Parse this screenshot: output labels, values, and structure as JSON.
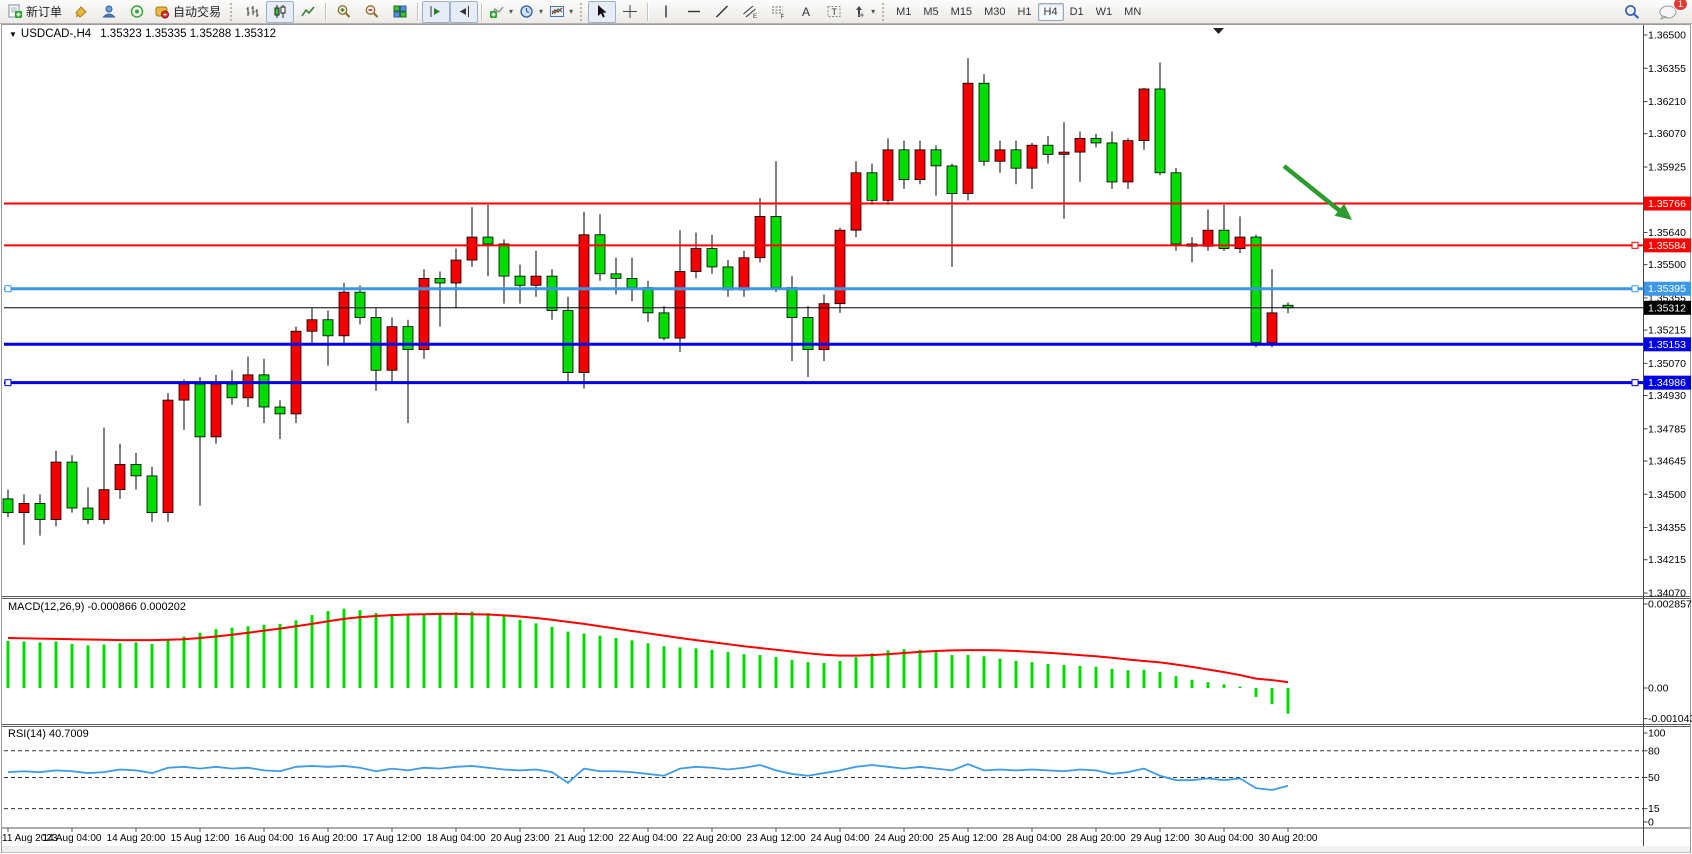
{
  "toolbar": {
    "new_order": "新订单",
    "auto_trading": "自动交易",
    "timeframes": [
      "M1",
      "M5",
      "M15",
      "M30",
      "H1",
      "H4",
      "D1",
      "W1",
      "MN"
    ],
    "active_timeframe": "H4",
    "notification_badge": "1"
  },
  "chart": {
    "symbol_period": "USDCAD-,H4",
    "ohlc_text": "1.35323 1.35335 1.35288 1.35312"
  },
  "indicators": {
    "macd": {
      "name": "MACD(12,26,9)",
      "values_text": "-0.000866 0.000202"
    },
    "rsi": {
      "name": "RSI(14)",
      "value_text": "40.7009"
    }
  },
  "chart_data": {
    "type": "candlestick",
    "symbol": "USDCAD",
    "timeframe": "H4",
    "colors": {
      "bull": "#F40000",
      "bear": "#00DC00",
      "wick": "#000000",
      "macd_hist": "#00DC00",
      "macd_signal": "#FF0000",
      "rsi_line": "#3E9BEA",
      "line_red": "#FF0000",
      "line_blue": "#0000E8",
      "line_lightblue": "#3B97E8",
      "arrow": "#2E9B2E",
      "current": "#000000"
    },
    "price_axis_ticks": [
      "1.36500",
      "1.36355",
      "1.36210",
      "1.36070",
      "1.35925",
      "1.35640",
      "1.35500",
      "1.35355",
      "1.35215",
      "1.35070",
      "1.34930",
      "1.34785",
      "1.34645",
      "1.34500",
      "1.34355",
      "1.34215",
      "1.34070"
    ],
    "h_lines": [
      {
        "price": 1.35766,
        "label": "1.35766",
        "color": "#FF0000",
        "width": 2,
        "left_marker": false,
        "right_marker": false
      },
      {
        "price": 1.35584,
        "label": "1.35584",
        "color": "#FF0000",
        "width": 2,
        "left_marker": false,
        "right_marker": true
      },
      {
        "price": 1.35395,
        "label": "1.35395",
        "color": "#3B97E8",
        "width": 3,
        "left_marker": true,
        "right_marker": true
      },
      {
        "price": 1.35153,
        "label": "1.35153",
        "color": "#0000E8",
        "width": 3,
        "left_marker": false,
        "right_marker": false
      },
      {
        "price": 1.34986,
        "label": "1.34986",
        "color": "#0000E8",
        "width": 3,
        "left_marker": true,
        "right_marker": true
      }
    ],
    "current_price": {
      "value": 1.35312,
      "label": "1.35312"
    },
    "x_labels": [
      "11 Aug 2023",
      "14 Aug 04:00",
      "14 Aug 20:00",
      "15 Aug 12:00",
      "16 Aug 04:00",
      "16 Aug 20:00",
      "17 Aug 12:00",
      "18 Aug 04:00",
      "20 Aug 23:00",
      "21 Aug 12:00",
      "22 Aug 04:00",
      "22 Aug 20:00",
      "23 Aug 12:00",
      "24 Aug 04:00",
      "24 Aug 20:00",
      "25 Aug 12:00",
      "28 Aug 04:00",
      "28 Aug 20:00",
      "29 Aug 12:00",
      "30 Aug 04:00",
      "30 Aug 20:00"
    ],
    "candles": [
      [
        1.3448,
        1.3452,
        1.344,
        1.3442
      ],
      [
        1.3442,
        1.345,
        1.3428,
        1.3446
      ],
      [
        1.3446,
        1.345,
        1.3432,
        1.3439
      ],
      [
        1.3439,
        1.3469,
        1.3436,
        1.3464
      ],
      [
        1.3464,
        1.3467,
        1.3442,
        1.3444
      ],
      [
        1.3444,
        1.3453,
        1.3437,
        1.3439
      ],
      [
        1.3439,
        1.3479,
        1.3437,
        1.3452
      ],
      [
        1.3452,
        1.3472,
        1.3448,
        1.3463
      ],
      [
        1.3463,
        1.3468,
        1.3452,
        1.3458
      ],
      [
        1.3458,
        1.3462,
        1.3438,
        1.3442
      ],
      [
        1.3442,
        1.3494,
        1.3438,
        1.3491
      ],
      [
        1.3491,
        1.35,
        1.3478,
        1.3498
      ],
      [
        1.3498,
        1.3501,
        1.3445,
        1.3475
      ],
      [
        1.3475,
        1.3502,
        1.3472,
        1.3498
      ],
      [
        1.3498,
        1.3504,
        1.3489,
        1.3492
      ],
      [
        1.3492,
        1.351,
        1.3488,
        1.3502
      ],
      [
        1.3502,
        1.3509,
        1.3481,
        1.3488
      ],
      [
        1.3488,
        1.3491,
        1.3474,
        1.3485
      ],
      [
        1.3485,
        1.3523,
        1.3481,
        1.3521
      ],
      [
        1.3521,
        1.3531,
        1.3515,
        1.3526
      ],
      [
        1.3526,
        1.353,
        1.3506,
        1.3519
      ],
      [
        1.3519,
        1.3542,
        1.3515,
        1.3538
      ],
      [
        1.3538,
        1.3541,
        1.3524,
        1.3527
      ],
      [
        1.3527,
        1.3531,
        1.3495,
        1.3504
      ],
      [
        1.3504,
        1.3527,
        1.3499,
        1.3523
      ],
      [
        1.3523,
        1.3526,
        1.3481,
        1.3513
      ],
      [
        1.3513,
        1.3548,
        1.3509,
        1.3544
      ],
      [
        1.3544,
        1.3547,
        1.3523,
        1.3542
      ],
      [
        1.3542,
        1.3557,
        1.3531,
        1.3552
      ],
      [
        1.3552,
        1.3575,
        1.3549,
        1.3562
      ],
      [
        1.3562,
        1.3576,
        1.3545,
        1.3559
      ],
      [
        1.3559,
        1.3561,
        1.3533,
        1.3545
      ],
      [
        1.3545,
        1.355,
        1.3533,
        1.3541
      ],
      [
        1.3541,
        1.3556,
        1.3536,
        1.3545
      ],
      [
        1.3545,
        1.3548,
        1.3526,
        1.353
      ],
      [
        1.353,
        1.3536,
        1.3499,
        1.3503
      ],
      [
        1.3503,
        1.3573,
        1.3496,
        1.3563
      ],
      [
        1.3563,
        1.3572,
        1.3543,
        1.3546
      ],
      [
        1.3546,
        1.3553,
        1.3537,
        1.3544
      ],
      [
        1.3544,
        1.3553,
        1.3534,
        1.354
      ],
      [
        1.354,
        1.3543,
        1.3525,
        1.3529
      ],
      [
        1.3529,
        1.3532,
        1.3517,
        1.3518
      ],
      [
        1.3518,
        1.3565,
        1.3512,
        1.3547
      ],
      [
        1.3547,
        1.3564,
        1.3544,
        1.3557
      ],
      [
        1.3557,
        1.3563,
        1.3546,
        1.3549
      ],
      [
        1.3549,
        1.3552,
        1.3536,
        1.3539
      ],
      [
        1.3539,
        1.3556,
        1.3536,
        1.3553
      ],
      [
        1.3553,
        1.3579,
        1.3551,
        1.3571
      ],
      [
        1.3571,
        1.3595,
        1.3538,
        1.354
      ],
      [
        1.354,
        1.3545,
        1.3508,
        1.3527
      ],
      [
        1.3527,
        1.3532,
        1.3501,
        1.3513
      ],
      [
        1.3513,
        1.3537,
        1.3508,
        1.3533
      ],
      [
        1.3533,
        1.3566,
        1.3529,
        1.3565
      ],
      [
        1.3565,
        1.3595,
        1.3562,
        1.359
      ],
      [
        1.359,
        1.3594,
        1.3576,
        1.3578
      ],
      [
        1.3578,
        1.3605,
        1.3576,
        1.36
      ],
      [
        1.36,
        1.3604,
        1.3583,
        1.3587
      ],
      [
        1.3587,
        1.3604,
        1.3585,
        1.36
      ],
      [
        1.36,
        1.3602,
        1.358,
        1.3593
      ],
      [
        1.3593,
        1.3594,
        1.3549,
        1.3581
      ],
      [
        1.3581,
        1.364,
        1.3578,
        1.3629
      ],
      [
        1.3629,
        1.3633,
        1.3593,
        1.3595
      ],
      [
        1.3595,
        1.3604,
        1.359,
        1.36
      ],
      [
        1.36,
        1.3604,
        1.3585,
        1.3592
      ],
      [
        1.3592,
        1.3603,
        1.3583,
        1.3602
      ],
      [
        1.3602,
        1.3606,
        1.3594,
        1.3598
      ],
      [
        1.3598,
        1.3612,
        1.357,
        1.3599
      ],
      [
        1.3599,
        1.3608,
        1.3586,
        1.3605
      ],
      [
        1.3605,
        1.3607,
        1.3601,
        1.3603
      ],
      [
        1.3603,
        1.3608,
        1.3583,
        1.3586
      ],
      [
        1.3586,
        1.3605,
        1.3583,
        1.3604
      ],
      [
        1.3604,
        1.3627,
        1.36,
        1.36265
      ],
      [
        1.36265,
        1.3638,
        1.3589,
        1.359
      ],
      [
        1.359,
        1.3592,
        1.3556,
        1.3559
      ],
      [
        1.3559,
        1.3562,
        1.3551,
        1.3558
      ],
      [
        1.3558,
        1.3574,
        1.3556,
        1.3565
      ],
      [
        1.3565,
        1.3576,
        1.3556,
        1.3557
      ],
      [
        1.3557,
        1.3571,
        1.3555,
        1.3562
      ],
      [
        1.3562,
        1.3563,
        1.3514,
        1.3516
      ],
      [
        1.3516,
        1.3548,
        1.3514,
        1.3529
      ],
      [
        1.35323,
        1.35335,
        1.35288,
        1.35312
      ]
    ],
    "macd": {
      "axis_labels": [
        "0.002857",
        "0.00",
        "-0.001043"
      ],
      "axis_values": [
        0.002857,
        0,
        -0.001043
      ],
      "histogram": [
        0.0016,
        0.00158,
        0.00155,
        0.00158,
        0.0015,
        0.00145,
        0.00148,
        0.00152,
        0.00155,
        0.0015,
        0.00162,
        0.00175,
        0.00188,
        0.002,
        0.00205,
        0.0021,
        0.00215,
        0.00218,
        0.0023,
        0.00248,
        0.00262,
        0.0027,
        0.00265,
        0.00255,
        0.00252,
        0.00248,
        0.00252,
        0.00255,
        0.00258,
        0.0026,
        0.00255,
        0.00245,
        0.00232,
        0.0022,
        0.00208,
        0.00192,
        0.00185,
        0.00178,
        0.0017,
        0.00162,
        0.00152,
        0.00142,
        0.00138,
        0.00135,
        0.0013,
        0.00122,
        0.00115,
        0.00112,
        0.00105,
        0.00095,
        0.00088,
        0.00085,
        0.00092,
        0.00105,
        0.00118,
        0.00128,
        0.00132,
        0.0013,
        0.00122,
        0.00112,
        0.00112,
        0.00108,
        0.001,
        0.00092,
        0.00088,
        0.00082,
        0.00078,
        0.00075,
        0.00072,
        0.00065,
        0.0006,
        0.00062,
        0.00055,
        0.0004,
        0.00028,
        0.0002,
        0.00012,
        5e-05,
        -0.0003,
        -0.00055,
        -0.00087
      ],
      "signal": [
        0.0017,
        0.00169,
        0.00168,
        0.00167,
        0.00166,
        0.00165,
        0.00164,
        0.00163,
        0.00163,
        0.00163,
        0.00164,
        0.00166,
        0.0017,
        0.00175,
        0.00181,
        0.00188,
        0.00195,
        0.00202,
        0.0021,
        0.00218,
        0.00227,
        0.00235,
        0.00241,
        0.00245,
        0.00248,
        0.0025,
        0.00251,
        0.00252,
        0.00252,
        0.00251,
        0.0025,
        0.00247,
        0.00243,
        0.00238,
        0.00232,
        0.00225,
        0.00218,
        0.0021,
        0.00202,
        0.00194,
        0.00186,
        0.00178,
        0.0017,
        0.00163,
        0.00156,
        0.00149,
        0.00142,
        0.00136,
        0.0013,
        0.00124,
        0.00118,
        0.00113,
        0.0011,
        0.0011,
        0.00112,
        0.00115,
        0.00119,
        0.00123,
        0.00126,
        0.00128,
        0.00129,
        0.00129,
        0.00128,
        0.00126,
        0.00123,
        0.0012,
        0.00116,
        0.00112,
        0.00108,
        0.00103,
        0.00097,
        0.00092,
        0.00087,
        0.0008,
        0.00072,
        0.00063,
        0.00054,
        0.00044,
        0.00032,
        0.00027,
        0.0002
      ]
    },
    "rsi": {
      "axis_labels": [
        "100",
        "80",
        "50",
        "15",
        "0"
      ],
      "axis_values": [
        100,
        80,
        50,
        15,
        0
      ],
      "dashed_levels": [
        80,
        50,
        15
      ],
      "series": [
        56,
        57,
        56,
        58,
        57,
        55,
        56,
        59,
        58,
        55,
        61,
        62,
        60,
        62,
        60,
        61,
        58,
        57,
        62,
        63,
        62,
        63,
        61,
        57,
        60,
        58,
        61,
        60,
        62,
        63,
        61,
        59,
        58,
        59,
        56,
        44,
        60,
        57,
        57,
        56,
        54,
        52,
        60,
        62,
        61,
        59,
        61,
        64,
        58,
        54,
        52,
        55,
        58,
        62,
        64,
        62,
        60,
        62,
        60,
        58,
        65,
        58,
        59,
        58,
        59,
        58,
        57,
        59,
        58,
        54,
        56,
        60,
        52,
        47,
        47,
        49,
        47,
        49,
        38,
        36,
        40.7
      ]
    }
  }
}
